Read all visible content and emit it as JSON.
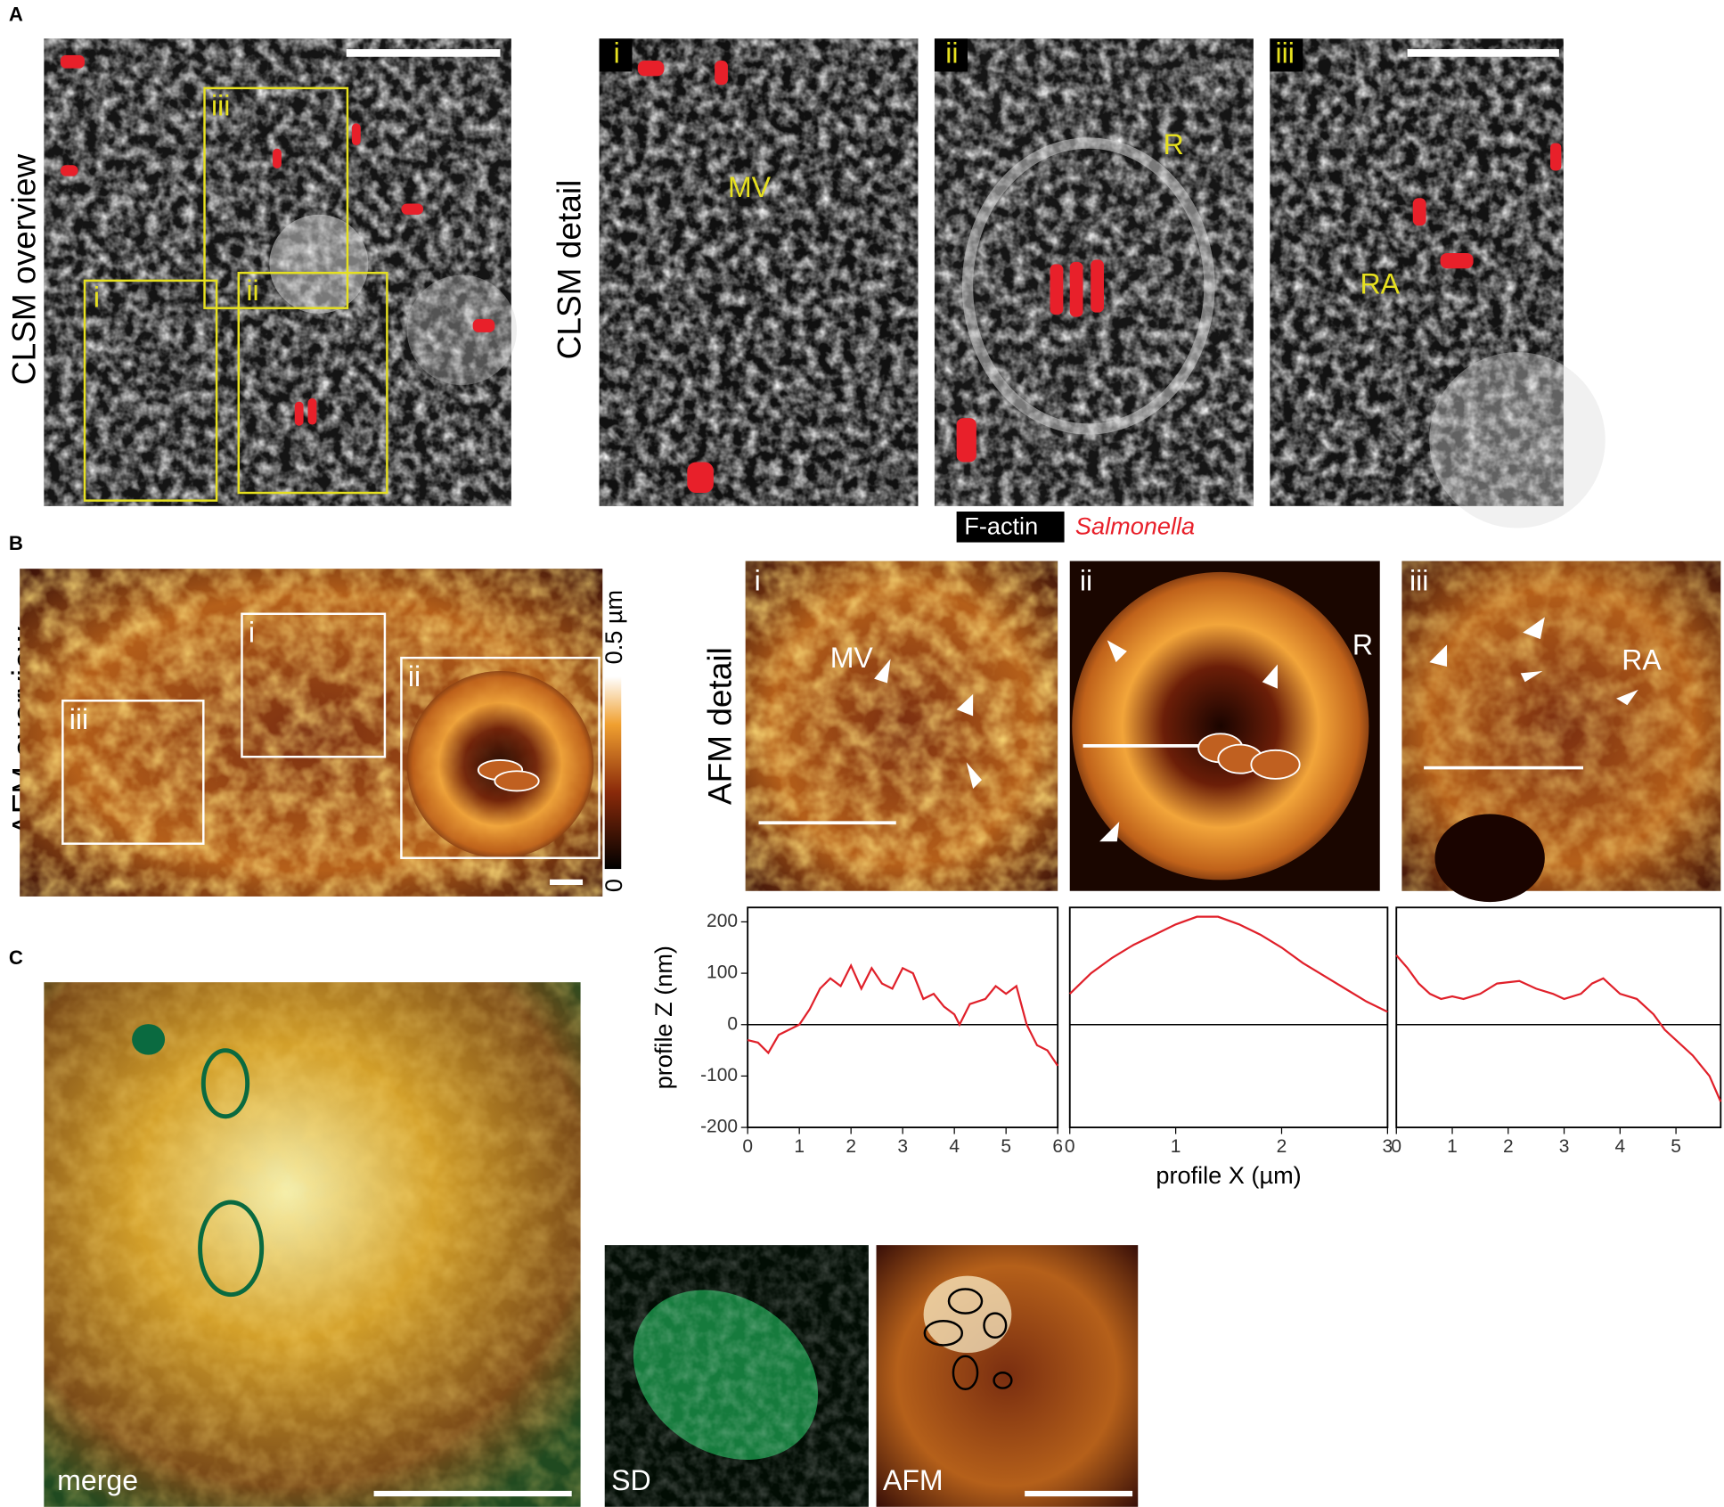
{
  "figure": {
    "panel_labels": [
      "A",
      "B",
      "C"
    ],
    "clsm": {
      "overview_label": "CLSM overview",
      "detail_label": "CLSM detail",
      "box_labels": [
        "i",
        "ii",
        "iii"
      ],
      "detail_labels": [
        "i",
        "ii",
        "iii"
      ],
      "annotations": [
        "MV",
        "R",
        "RA"
      ],
      "legend": [
        "F-actin",
        "Salmonella"
      ]
    },
    "afm": {
      "overview_label": "AFM overview",
      "detail_label": "AFM detail",
      "box_labels": [
        "i",
        "ii",
        "iii"
      ],
      "detail_labels": [
        "i",
        "ii",
        "iii"
      ],
      "annotations": [
        "MV",
        "R",
        "RA"
      ],
      "colorbar_labels": [
        "0.5 µm",
        "0"
      ]
    },
    "correlation": {
      "labels": [
        "merge",
        "SD",
        "AFM"
      ]
    }
  },
  "chart_data": [
    {
      "type": "line",
      "ylabel": "profile Z (nm)",
      "color": "#e0202a",
      "x": [
        0,
        0.2,
        0.4,
        0.6,
        0.8,
        1.0,
        1.2,
        1.4,
        1.6,
        1.8,
        2.0,
        2.2,
        2.4,
        2.6,
        2.8,
        3.0,
        3.2,
        3.4,
        3.6,
        3.8,
        4.0,
        4.1,
        4.3,
        4.6,
        4.8,
        5.0,
        5.2,
        5.4,
        5.6,
        5.8,
        6.0
      ],
      "values": [
        -30,
        -35,
        -55,
        -20,
        -10,
        0,
        30,
        70,
        90,
        75,
        115,
        70,
        110,
        80,
        70,
        110,
        100,
        50,
        60,
        35,
        20,
        0,
        40,
        50,
        75,
        60,
        75,
        0,
        -40,
        -50,
        -80
      ],
      "xlim": [
        0,
        6
      ],
      "xticks": [
        0,
        1,
        2,
        3,
        4,
        5,
        6
      ],
      "ylim": [
        -200,
        228
      ],
      "yticks": [
        -200,
        -100,
        0,
        100,
        200
      ]
    },
    {
      "type": "line",
      "xlabel": "profile X (µm)",
      "color": "#e0202a",
      "x": [
        0,
        0.2,
        0.4,
        0.6,
        0.8,
        1.0,
        1.2,
        1.4,
        1.6,
        1.8,
        2.0,
        2.2,
        2.4,
        2.6,
        2.8,
        3.0
      ],
      "values": [
        60,
        100,
        130,
        155,
        175,
        195,
        210,
        210,
        195,
        175,
        150,
        120,
        95,
        70,
        45,
        25
      ],
      "xlim": [
        0,
        3
      ],
      "xticks": [
        0,
        1,
        2,
        3
      ],
      "ylim": [
        -200,
        228
      ]
    },
    {
      "type": "line",
      "color": "#e0202a",
      "x": [
        0,
        0.2,
        0.4,
        0.6,
        0.8,
        1.0,
        1.2,
        1.5,
        1.8,
        2.2,
        2.5,
        2.8,
        3.0,
        3.3,
        3.5,
        3.7,
        4.0,
        4.3,
        4.6,
        4.8,
        5.0,
        5.3,
        5.6,
        5.8
      ],
      "values": [
        135,
        110,
        80,
        60,
        50,
        55,
        50,
        60,
        80,
        85,
        70,
        60,
        50,
        60,
        80,
        90,
        60,
        50,
        20,
        -10,
        -30,
        -60,
        -100,
        -150
      ],
      "xlim": [
        0,
        5.8
      ],
      "xticks": [
        0,
        1,
        2,
        3,
        4,
        5
      ],
      "ylim": [
        -200,
        228
      ]
    }
  ]
}
